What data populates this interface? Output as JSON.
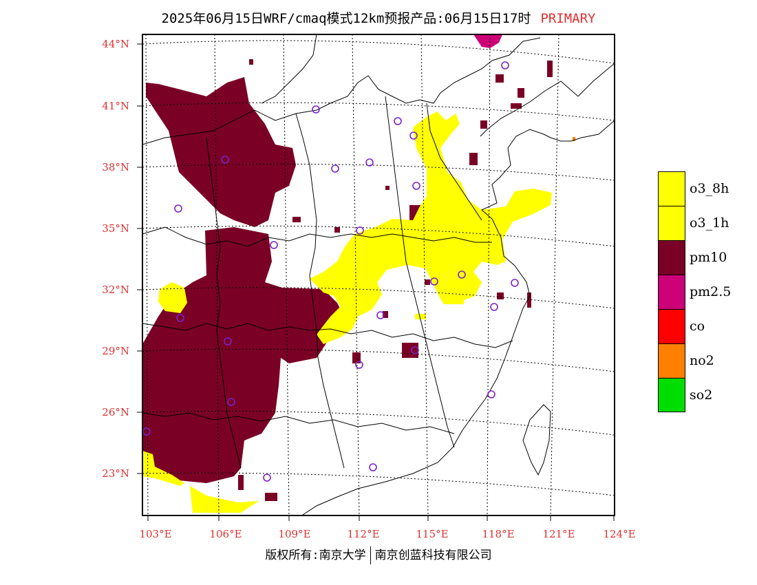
{
  "title": {
    "main": "2025年06月15日WRF/cmaq模式12km预报产品:06月15日17时",
    "tag": "PRIMARY"
  },
  "axes": {
    "lat_labels": [
      "44°N",
      "41°N",
      "38°N",
      "35°N",
      "32°N",
      "29°N",
      "26°N",
      "23°N"
    ],
    "lon_labels": [
      "103°E",
      "106°E",
      "109°E",
      "112°E",
      "115°E",
      "118°E",
      "121°E",
      "124°E"
    ]
  },
  "legend": [
    {
      "label": "o3_8h",
      "color": "#ffff00"
    },
    {
      "label": "o3_1h",
      "color": "#ffff00"
    },
    {
      "label": "pm10",
      "color": "#7a0026"
    },
    {
      "label": "pm2.5",
      "color": "#cc0077"
    },
    {
      "label": "co",
      "color": "#ff0000"
    },
    {
      "label": "no2",
      "color": "#ff7f00"
    },
    {
      "label": "so2",
      "color": "#00dd00"
    }
  ],
  "footer": {
    "left": "版权所有:南京大学",
    "right": "南京创蓝科技有限公司"
  },
  "colors": {
    "label_red": "#e03030",
    "pm10": "#7a0026",
    "o3": "#ffff00",
    "pm25": "#cc0077",
    "city_marker": "#7a22cc"
  }
}
